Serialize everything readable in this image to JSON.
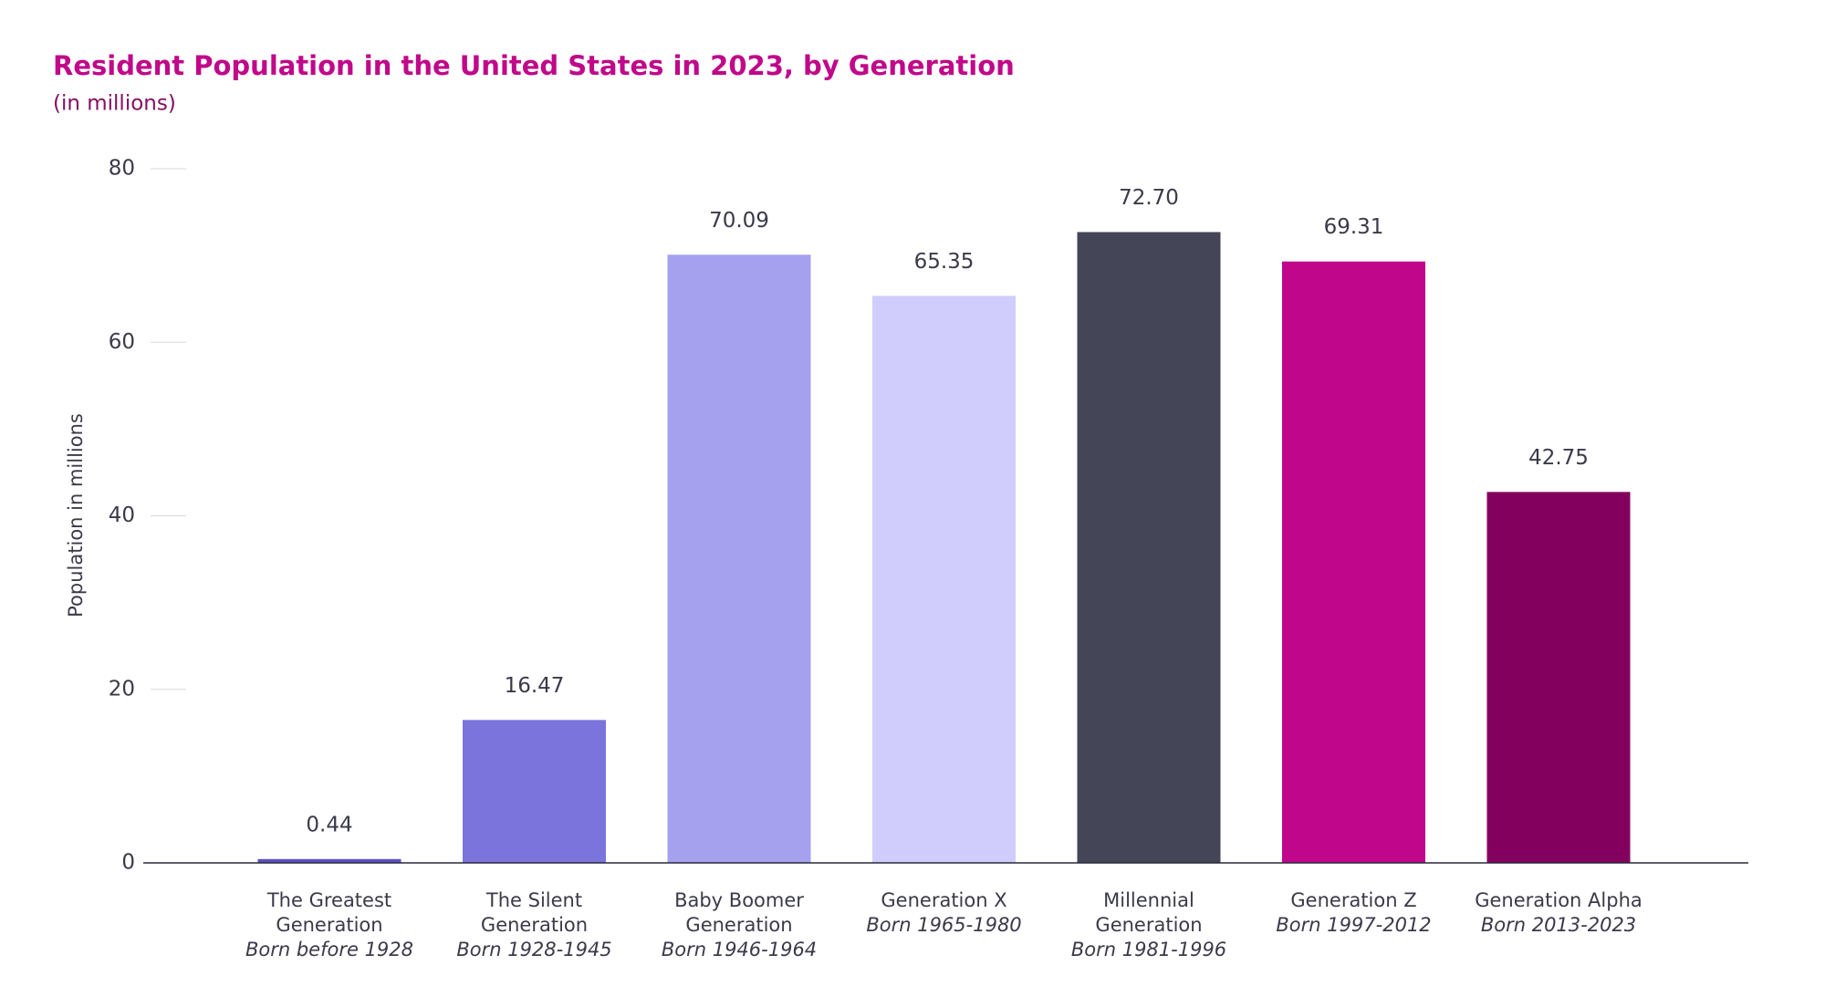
{
  "chart_data": {
    "type": "bar",
    "title": "Resident Population in the United States in 2023, by Generation",
    "subtitle": "(in millions)",
    "y_label": "Population in millions",
    "categories": [
      "The Greatest Generation",
      "The Silent Generation",
      "Baby Boomer Generation",
      "Generation X",
      "Millennial Generation",
      "Generation Z",
      "Generation Alpha"
    ],
    "category_notes": [
      "Born before 1928",
      "Born 1928-1945",
      "Born 1946-1964",
      "Born 1965-1980",
      "Born 1981-1996",
      "Born 1997-2012",
      "Born 2013-2023"
    ],
    "values": [
      0.44,
      16.47,
      70.09,
      65.35,
      72.7,
      69.31,
      42.75
    ],
    "value_labels": [
      "0.44",
      "16.47",
      "70.09",
      "65.35",
      "72.70",
      "69.31",
      "42.75"
    ],
    "colors": [
      "#5b50c4",
      "#7a74dc",
      "#a6a1ef",
      "#d0cdfd",
      "#454558",
      "#c0068a",
      "#83005f"
    ],
    "ylim": [
      0,
      80
    ],
    "yticks": [
      0,
      20,
      40,
      60,
      80
    ],
    "grid": true
  }
}
